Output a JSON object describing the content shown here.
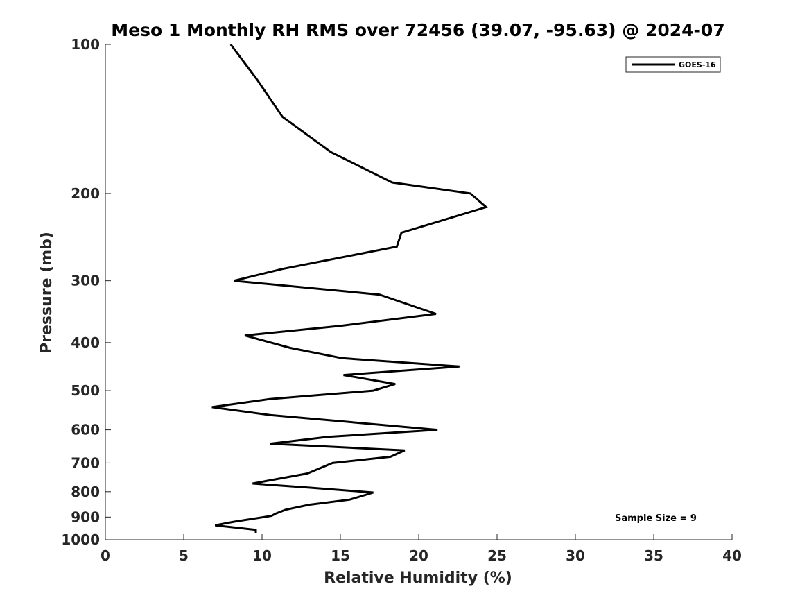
{
  "chart_data": {
    "type": "line",
    "title": "Meso 1 Monthly RH RMS over 72456 (39.07, -95.63) @ 2024-07",
    "xlabel": "Relative Humidity (%)",
    "ylabel": "Pressure (mb)",
    "xlim": [
      0,
      40
    ],
    "ylim": [
      1000,
      100
    ],
    "yscale": "log",
    "y_inverted": true,
    "grid": false,
    "x_ticks": [
      0,
      5,
      10,
      15,
      20,
      25,
      30,
      35,
      40
    ],
    "y_ticks": [
      100,
      200,
      300,
      400,
      500,
      600,
      700,
      800,
      900,
      1000
    ],
    "legend": {
      "position": "top-right",
      "entries": [
        "GOES-16"
      ]
    },
    "annotation": "Sample Size = 9",
    "series": [
      {
        "name": "GOES-16",
        "color": "#000000",
        "points": [
          [
            8.0,
            100
          ],
          [
            9.7,
            118
          ],
          [
            11.3,
            140
          ],
          [
            14.4,
            165
          ],
          [
            18.3,
            190
          ],
          [
            23.3,
            200
          ],
          [
            24.3,
            213
          ],
          [
            18.9,
            240
          ],
          [
            18.6,
            256
          ],
          [
            11.3,
            284
          ],
          [
            8.2,
            300
          ],
          [
            17.5,
            320
          ],
          [
            21.1,
            350
          ],
          [
            15.0,
            370
          ],
          [
            8.9,
            387
          ],
          [
            11.8,
            410
          ],
          [
            15.1,
            430
          ],
          [
            22.6,
            447
          ],
          [
            15.2,
            465
          ],
          [
            18.5,
            485
          ],
          [
            17.1,
            500
          ],
          [
            10.5,
            520
          ],
          [
            6.8,
            540
          ],
          [
            10.5,
            560
          ],
          [
            21.2,
            600
          ],
          [
            14.2,
            620
          ],
          [
            10.5,
            640
          ],
          [
            19.1,
            660
          ],
          [
            18.2,
            680
          ],
          [
            14.5,
            700
          ],
          [
            12.9,
            735
          ],
          [
            9.4,
            770
          ],
          [
            13.0,
            785
          ],
          [
            17.1,
            803
          ],
          [
            15.6,
            830
          ],
          [
            13.0,
            850
          ],
          [
            11.5,
            870
          ],
          [
            10.9,
            885
          ],
          [
            10.6,
            895
          ],
          [
            8.2,
            920
          ],
          [
            7.0,
            935
          ],
          [
            9.6,
            955
          ],
          [
            9.6,
            970
          ]
        ]
      }
    ]
  }
}
